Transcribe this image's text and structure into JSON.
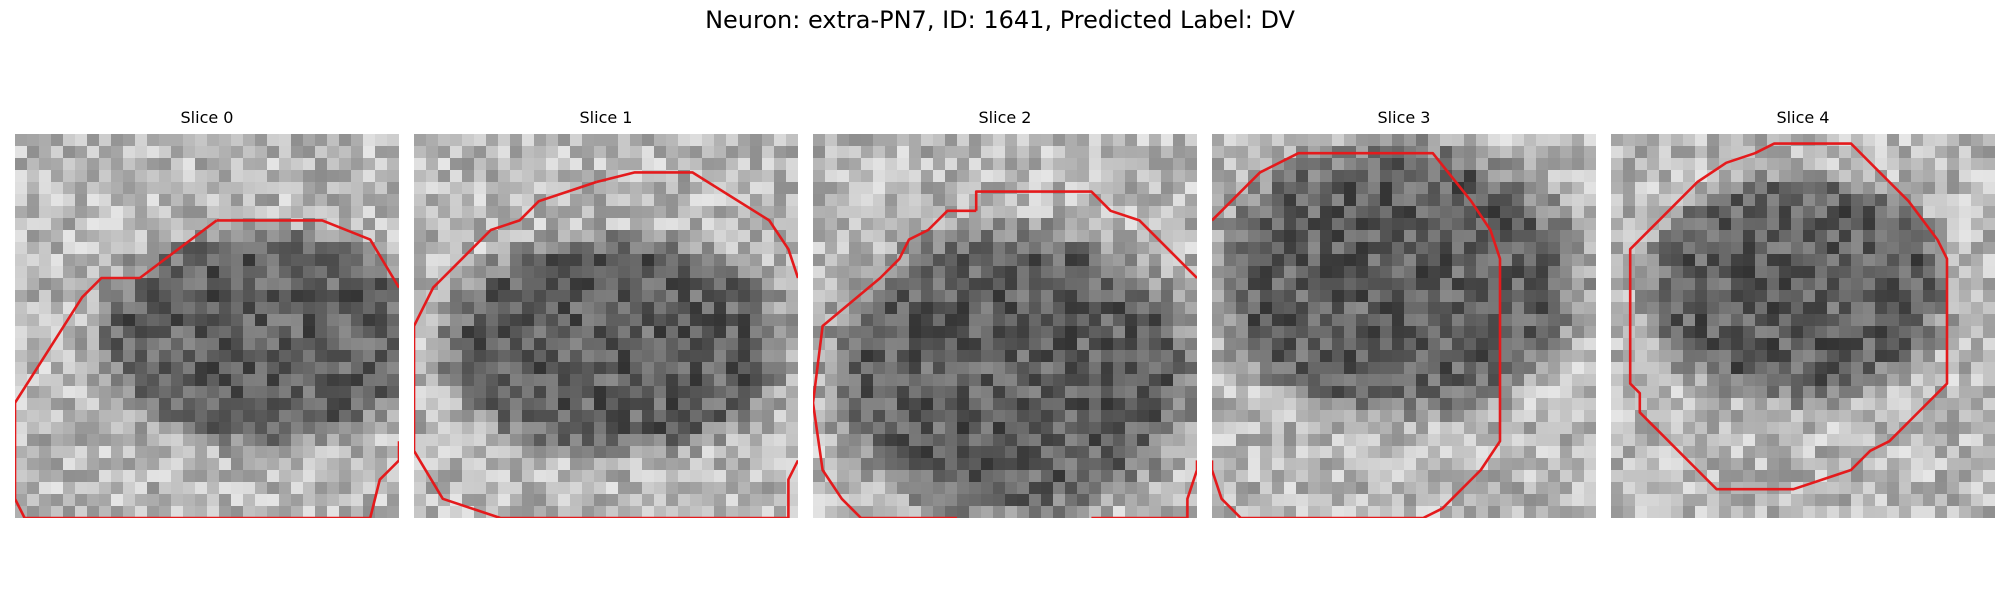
{
  "figure": {
    "suptitle": "Neuron: extra-PN7, ID: 1641, Predicted Label: DV",
    "colormap": "gray",
    "contour_color": "#e41a1c"
  },
  "panels": [
    {
      "title": "Slice 0",
      "seed": 11,
      "blob": [
        0.64,
        0.53,
        0.36,
        0.24
      ],
      "contour": [
        [
          [
            10,
            4
          ],
          [
            6,
            7
          ],
          [
            4,
            7
          ],
          [
            3,
            8
          ],
          [
            -0.5,
            13.5
          ],
          [
            -1.5,
            18.5
          ],
          [
            0,
            22
          ],
          [
            3,
            24.5
          ],
          [
            8.5,
            24.5
          ],
          [
            14,
            24.5
          ],
          [
            18,
            21
          ],
          [
            18.5,
            17.5
          ],
          [
            19,
            17
          ],
          [
            19.5,
            16.5
          ],
          [
            20.5,
            15.5
          ]
        ],
        [
          [
            20.5,
            7.5
          ],
          [
            18,
            5
          ],
          [
            15.5,
            4
          ],
          [
            10,
            4
          ]
        ]
      ]
    },
    {
      "title": "Slice 1",
      "seed": 23,
      "blob": [
        0.52,
        0.55,
        0.38,
        0.24
      ],
      "contour": [
        [
          [
            9,
            2
          ],
          [
            7.5,
            2.5
          ],
          [
            6,
            3
          ],
          [
            5,
            4
          ],
          [
            3.5,
            4.5
          ],
          [
            2,
            6
          ],
          [
            1.5,
            6.5
          ],
          [
            1,
            7
          ],
          [
            0.5,
            7.5
          ],
          [
            0,
            8.5
          ],
          [
            -0.5,
            9.5
          ],
          [
            -1,
            13.5
          ],
          [
            -1,
            16
          ],
          [
            1,
            18.5
          ],
          [
            4,
            21
          ],
          [
            5.5,
            22.5
          ],
          [
            8,
            24.5
          ],
          [
            12,
            24.5
          ],
          [
            13.5,
            24
          ],
          [
            17.5,
            21.5
          ],
          [
            19,
            20.5
          ],
          [
            19,
            17.5
          ],
          [
            20.5,
            16.5
          ]
        ],
        [
          [
            20.5,
            7
          ],
          [
            19,
            5.5
          ],
          [
            18,
            4
          ],
          [
            14,
            1.5
          ],
          [
            11,
            1.5
          ],
          [
            9,
            2
          ]
        ]
      ]
    },
    {
      "title": "Slice 2",
      "seed": 37,
      "blob": [
        0.52,
        0.62,
        0.4,
        0.32
      ],
      "contour": [
        [
          [
            8,
            3.5
          ],
          [
            6.5,
            3.5
          ],
          [
            5.5,
            4.5
          ],
          [
            4.5,
            5
          ],
          [
            4,
            6
          ],
          [
            3.5,
            6.5
          ],
          [
            3,
            7
          ],
          [
            0,
            9.5
          ],
          [
            -0.5,
            13.5
          ],
          [
            0,
            17
          ],
          [
            1,
            18.5
          ],
          [
            1.5,
            19
          ],
          [
            2,
            21
          ],
          [
            4.5,
            22.5
          ],
          [
            6,
            24
          ],
          [
            7,
            25
          ]
        ],
        [
          [
            20.5,
            7
          ],
          [
            19,
            6.5
          ],
          [
            18,
            5.5
          ],
          [
            16.5,
            4
          ],
          [
            15,
            3.5
          ],
          [
            14,
            2.5
          ],
          [
            12.5,
            2.5
          ],
          [
            8,
            2.5
          ],
          [
            8,
            3.5
          ]
        ],
        [
          [
            20.5,
            16.5
          ],
          [
            19.5,
            17
          ],
          [
            19,
            18.5
          ],
          [
            19,
            20
          ],
          [
            17,
            22
          ],
          [
            15,
            24
          ],
          [
            14,
            25
          ]
        ]
      ]
    },
    {
      "title": "Slice 3",
      "seed": 51,
      "blob": [
        0.48,
        0.38,
        0.4,
        0.3
      ],
      "contour": [
        [
          [
            -0.5,
            4
          ],
          [
            2,
            1.5
          ],
          [
            4,
            0.5
          ],
          [
            9,
            0.5
          ],
          [
            11,
            0.5
          ],
          [
            13,
            3
          ],
          [
            14,
            4.5
          ],
          [
            14.5,
            6
          ],
          [
            14.5,
            7
          ],
          [
            14.5,
            9
          ],
          [
            14.5,
            11
          ],
          [
            14.5,
            13
          ],
          [
            14.5,
            15.5
          ],
          [
            13.5,
            17
          ],
          [
            12,
            18.5
          ],
          [
            11.5,
            19
          ],
          [
            10.5,
            19.5
          ],
          [
            9.5,
            20
          ],
          [
            8,
            21.5
          ],
          [
            7.5,
            22
          ],
          [
            6.5,
            22.5
          ],
          [
            4,
            22.5
          ],
          [
            3,
            21.5
          ],
          [
            2,
            20.5
          ],
          [
            1,
            19.5
          ],
          [
            0,
            18.5
          ],
          [
            -0.5,
            17
          ],
          [
            -0.5,
            16.5
          ]
        ]
      ]
    },
    {
      "title": "Slice 4",
      "seed": 68,
      "blob": [
        0.48,
        0.4,
        0.33,
        0.25
      ],
      "contour": [
        [
          [
            7,
            0.5
          ],
          [
            8,
            0
          ],
          [
            10,
            0
          ],
          [
            12,
            0
          ],
          [
            13,
            1
          ],
          [
            13.5,
            1.5
          ],
          [
            14,
            2
          ],
          [
            15,
            3
          ],
          [
            16.5,
            5
          ],
          [
            17,
            6
          ],
          [
            17,
            7.5
          ],
          [
            17,
            9
          ],
          [
            17,
            11
          ],
          [
            17,
            12.5
          ],
          [
            16.5,
            13
          ],
          [
            15,
            14.5
          ],
          [
            14,
            15.5
          ],
          [
            13,
            16
          ],
          [
            12,
            17
          ],
          [
            10.5,
            17.5
          ],
          [
            9,
            18
          ],
          [
            7,
            18
          ],
          [
            5,
            18
          ],
          [
            4,
            17
          ],
          [
            3,
            16
          ],
          [
            2,
            15
          ],
          [
            1,
            14
          ],
          [
            1,
            13
          ],
          [
            0.5,
            12.5
          ],
          [
            0.5,
            11
          ],
          [
            0.5,
            9
          ],
          [
            0.5,
            7
          ],
          [
            0.5,
            5.5
          ],
          [
            2,
            4
          ],
          [
            3,
            3
          ],
          [
            4,
            2
          ],
          [
            5.5,
            1
          ],
          [
            7,
            0.5
          ]
        ]
      ]
    }
  ]
}
